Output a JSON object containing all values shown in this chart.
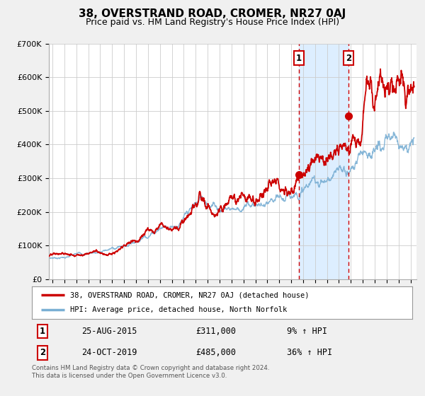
{
  "title": "38, OVERSTRAND ROAD, CROMER, NR27 0AJ",
  "subtitle": "Price paid vs. HM Land Registry's House Price Index (HPI)",
  "ylim": [
    0,
    700000
  ],
  "yticks": [
    0,
    100000,
    200000,
    300000,
    400000,
    500000,
    600000,
    700000
  ],
  "ytick_labels": [
    "£0",
    "£100K",
    "£200K",
    "£300K",
    "£400K",
    "£500K",
    "£600K",
    "£700K"
  ],
  "xlim_start": 1994.7,
  "xlim_end": 2025.5,
  "xtick_years": [
    1995,
    1996,
    1997,
    1998,
    1999,
    2000,
    2001,
    2002,
    2003,
    2004,
    2005,
    2006,
    2007,
    2008,
    2009,
    2010,
    2011,
    2012,
    2013,
    2014,
    2015,
    2016,
    2017,
    2018,
    2019,
    2020,
    2021,
    2022,
    2023,
    2024,
    2025
  ],
  "sale1_x": 2015.647,
  "sale1_y": 311000,
  "sale1_label": "1",
  "sale1_date": "25-AUG-2015",
  "sale1_price": "£311,000",
  "sale1_hpi": "9% ↑ HPI",
  "sale2_x": 2019.81,
  "sale2_y": 485000,
  "sale2_label": "2",
  "sale2_date": "24-OCT-2019",
  "sale2_price": "£485,000",
  "sale2_hpi": "36% ↑ HPI",
  "red_line_color": "#cc0000",
  "blue_line_color": "#7aafd4",
  "shaded_region_color": "#ddeeff",
  "vline_color": "#cc0000",
  "legend_house_label": "38, OVERSTRAND ROAD, CROMER, NR27 0AJ (detached house)",
  "legend_hpi_label": "HPI: Average price, detached house, North Norfolk",
  "footnote": "Contains HM Land Registry data © Crown copyright and database right 2024.\nThis data is licensed under the Open Government Licence v3.0.",
  "background_color": "#f0f0f0",
  "plot_bg_color": "#ffffff",
  "grid_color": "#cccccc",
  "title_fontsize": 11,
  "subtitle_fontsize": 9
}
